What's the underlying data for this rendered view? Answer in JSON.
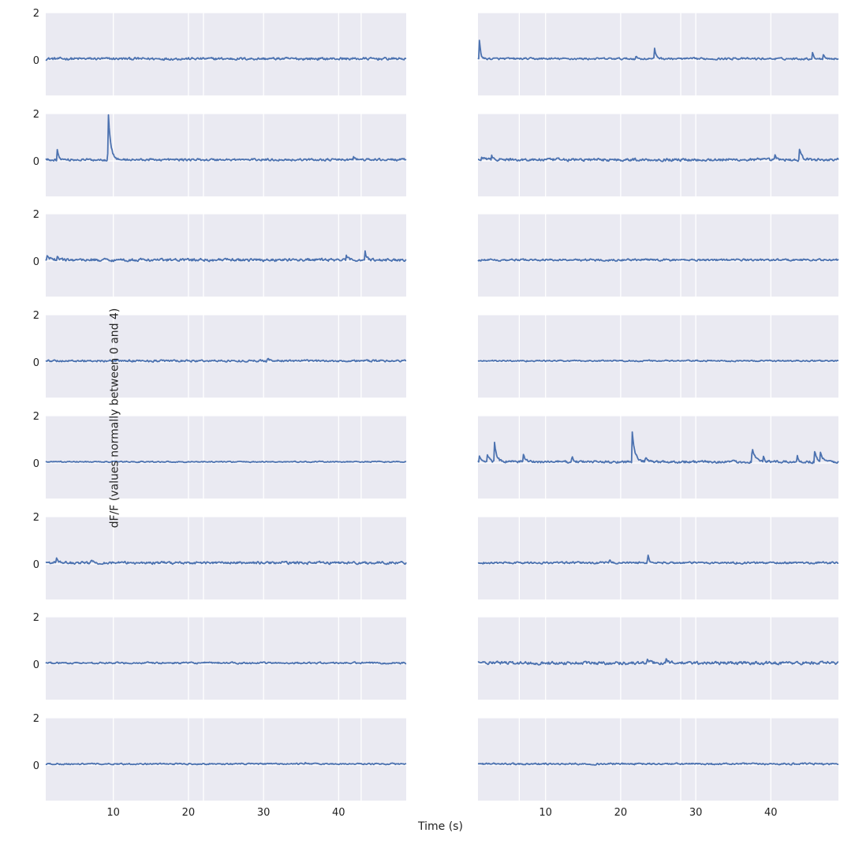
{
  "chart_data": {
    "type": "line",
    "layout": {
      "rows": 8,
      "cols": 2
    },
    "xlabel": "Time (s)",
    "ylabel": "dF/F (values normally between 0 and 4)",
    "xlim": [
      1,
      49
    ],
    "ylim": [
      -1.5,
      2
    ],
    "x_ticks": [
      10,
      20,
      30,
      40
    ],
    "y_ticks": [
      0,
      2
    ],
    "grid": true,
    "line_color": "#4c72b0",
    "background_color": "#eaeaf2",
    "grid_color": "#ffffff",
    "panels": [
      {
        "noise": 0.045,
        "peaks": [],
        "lines": [
          10,
          20,
          22,
          30,
          40,
          43
        ]
      },
      {
        "noise": 0.035,
        "peaks": [
          [
            1.2,
            0.9,
            0.15
          ],
          [
            22,
            0.12,
            0.2
          ],
          [
            24.5,
            0.45,
            0.25
          ],
          [
            35,
            0.1,
            0.2
          ],
          [
            45.5,
            0.3,
            0.2
          ],
          [
            47,
            0.25,
            0.2
          ]
        ],
        "lines": [
          6.5,
          10,
          20,
          28,
          30,
          40
        ]
      },
      {
        "noise": 0.04,
        "peaks": [
          [
            2.5,
            0.5,
            0.2
          ],
          [
            9.3,
            2.3,
            0.3
          ],
          [
            42,
            0.15,
            0.2
          ]
        ],
        "lines": [
          10,
          20,
          22,
          30,
          40,
          43
        ]
      },
      {
        "noise": 0.05,
        "peaks": [
          [
            1.5,
            0.15,
            0.3
          ],
          [
            2.8,
            0.2,
            0.3
          ],
          [
            40.5,
            0.2,
            0.2
          ],
          [
            43.8,
            0.45,
            0.3
          ]
        ],
        "lines": [
          6.5,
          10,
          20,
          28,
          30,
          40
        ]
      },
      {
        "noise": 0.05,
        "peaks": [
          [
            1.2,
            0.2,
            0.3
          ],
          [
            2.5,
            0.15,
            0.3
          ],
          [
            41,
            0.2,
            0.2
          ],
          [
            43.5,
            0.45,
            0.2
          ]
        ],
        "lines": [
          10,
          20,
          22,
          30,
          40,
          43
        ]
      },
      {
        "noise": 0.035,
        "peaks": [],
        "lines": [
          6.5,
          10,
          20,
          28,
          30,
          40
        ]
      },
      {
        "noise": 0.035,
        "peaks": [
          [
            30.5,
            0.12,
            0.3
          ]
        ],
        "lines": [
          10,
          20,
          22,
          30,
          40,
          43
        ]
      },
      {
        "noise": 0.025,
        "peaks": [],
        "lines": [
          6.5,
          10,
          20,
          28,
          30,
          40
        ]
      },
      {
        "noise": 0.02,
        "peaks": [],
        "lines": [
          10,
          20,
          22,
          30,
          40,
          43
        ]
      },
      {
        "noise": 0.045,
        "peaks": [
          [
            1.2,
            0.25,
            0.35
          ],
          [
            2.2,
            0.35,
            0.3
          ],
          [
            3.2,
            0.8,
            0.3
          ],
          [
            7,
            0.4,
            0.25
          ],
          [
            13.5,
            0.25,
            0.2
          ],
          [
            21.5,
            1.4,
            0.35
          ],
          [
            23.3,
            0.2,
            0.3
          ],
          [
            37.5,
            0.65,
            0.4
          ],
          [
            39,
            0.2,
            0.2
          ],
          [
            43.5,
            0.3,
            0.2
          ],
          [
            45.8,
            0.5,
            0.3
          ],
          [
            46.6,
            0.4,
            0.3
          ]
        ],
        "lines": [
          6.5,
          10,
          20,
          28,
          30,
          40
        ]
      },
      {
        "noise": 0.045,
        "peaks": [
          [
            2.4,
            0.25,
            0.2
          ],
          [
            7,
            0.1,
            0.3
          ]
        ],
        "lines": [
          10,
          20,
          22,
          30,
          40,
          43
        ]
      },
      {
        "noise": 0.035,
        "peaks": [
          [
            18.5,
            0.12,
            0.2
          ],
          [
            23.6,
            0.5,
            0.15
          ]
        ],
        "lines": [
          6.5,
          10,
          20,
          28,
          30,
          40
        ]
      },
      {
        "noise": 0.03,
        "peaks": [],
        "lines": [
          10,
          20,
          22,
          30,
          40,
          43
        ]
      },
      {
        "noise": 0.055,
        "peaks": [
          [
            23.5,
            0.2,
            0.3
          ],
          [
            26,
            0.2,
            0.3
          ]
        ],
        "lines": [
          6.5,
          10,
          20,
          28,
          30,
          40
        ]
      },
      {
        "noise": 0.025,
        "peaks": [
          [
            35.5,
            0.08,
            0.3
          ]
        ],
        "lines": [
          10,
          20,
          22,
          30,
          40,
          43
        ]
      },
      {
        "noise": 0.03,
        "peaks": [],
        "lines": [
          6.5,
          10,
          20,
          28,
          30,
          40
        ]
      }
    ]
  }
}
